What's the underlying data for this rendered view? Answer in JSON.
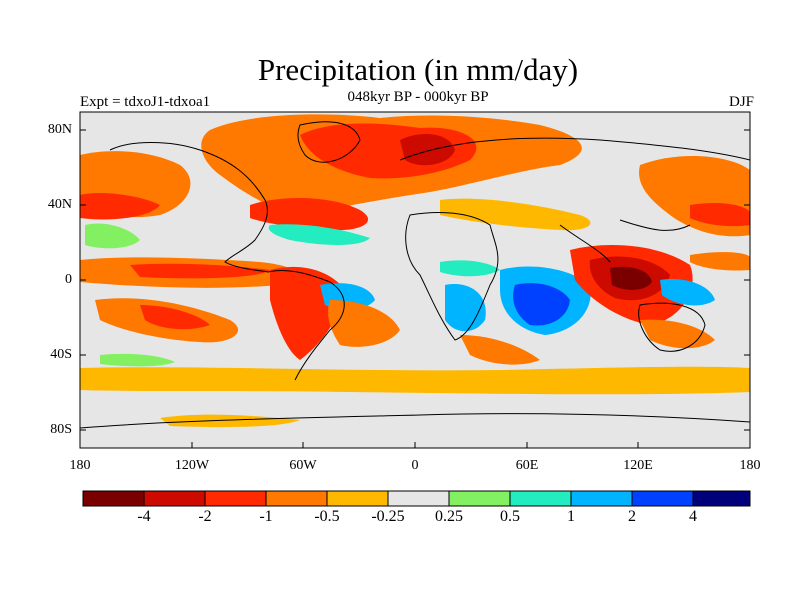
{
  "title": "Precipitation (in mm/day)",
  "subtitle": "048kyr BP - 000kyr BP",
  "left_label": "Expt = tdxoJ1-tdxoa1",
  "right_label": "DJF",
  "y_ticks": [
    "80N",
    "40N",
    "0",
    "40S",
    "80S"
  ],
  "x_ticks": [
    "180",
    "120W",
    "60W",
    "0",
    "60E",
    "120E",
    "180"
  ],
  "colorbar": {
    "colors": [
      "#7a0000",
      "#cc0a00",
      "#ff2a00",
      "#ff7800",
      "#ffb800",
      "#e6e6e6",
      "#82f060",
      "#22ecc0",
      "#00b4ff",
      "#0040ff",
      "#00007a"
    ],
    "labels": [
      "-4",
      "-2",
      "-1",
      "-0.5",
      "-0.25",
      "0.25",
      "0.5",
      "1",
      "2",
      "4"
    ]
  },
  "colors": {
    "ocean_neutral": "#e6e6e6",
    "coast": "#000000"
  }
}
